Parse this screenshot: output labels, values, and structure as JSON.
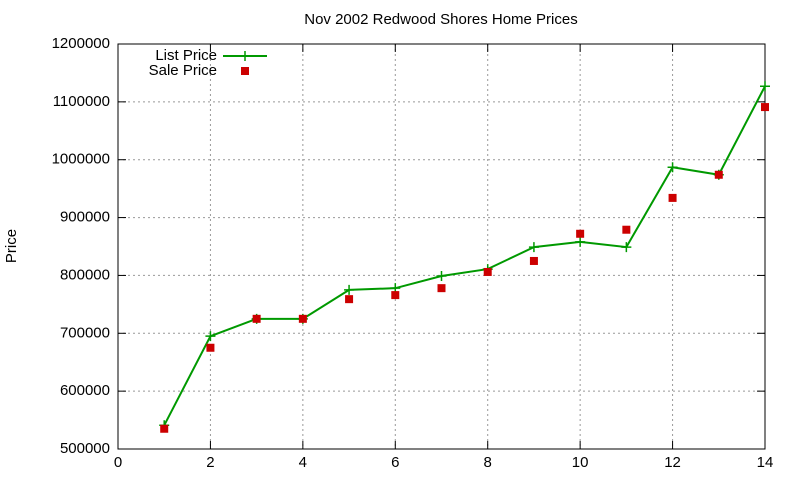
{
  "chart_data": {
    "type": "line",
    "title": "Nov 2002 Redwood Shores Home Prices",
    "y_label": "Price",
    "x": [
      1,
      2,
      3,
      4,
      5,
      6,
      7,
      8,
      9,
      10,
      11,
      12,
      13,
      14
    ],
    "series": [
      {
        "name": "List Price",
        "color": "#009900",
        "line": true,
        "marker": "plus",
        "values": [
          541000,
          695000,
          725000,
          725000,
          775000,
          778000,
          799000,
          811000,
          849000,
          858000,
          849000,
          987000,
          974000,
          1127000
        ]
      },
      {
        "name": "Sale Price",
        "color": "#cc0000",
        "line": false,
        "marker": "square",
        "values": [
          535000,
          675000,
          725000,
          725000,
          759000,
          766000,
          778000,
          806000,
          825000,
          872000,
          879000,
          934000,
          974000,
          1091000
        ]
      }
    ],
    "xlim": [
      0,
      14
    ],
    "xticks": [
      0,
      2,
      4,
      6,
      8,
      10,
      12,
      14
    ],
    "ylim": [
      500000,
      1200000
    ],
    "yticks": [
      500000,
      600000,
      700000,
      800000,
      900000,
      1000000,
      1100000,
      1200000
    ],
    "grid": true,
    "legend": "top-left"
  }
}
